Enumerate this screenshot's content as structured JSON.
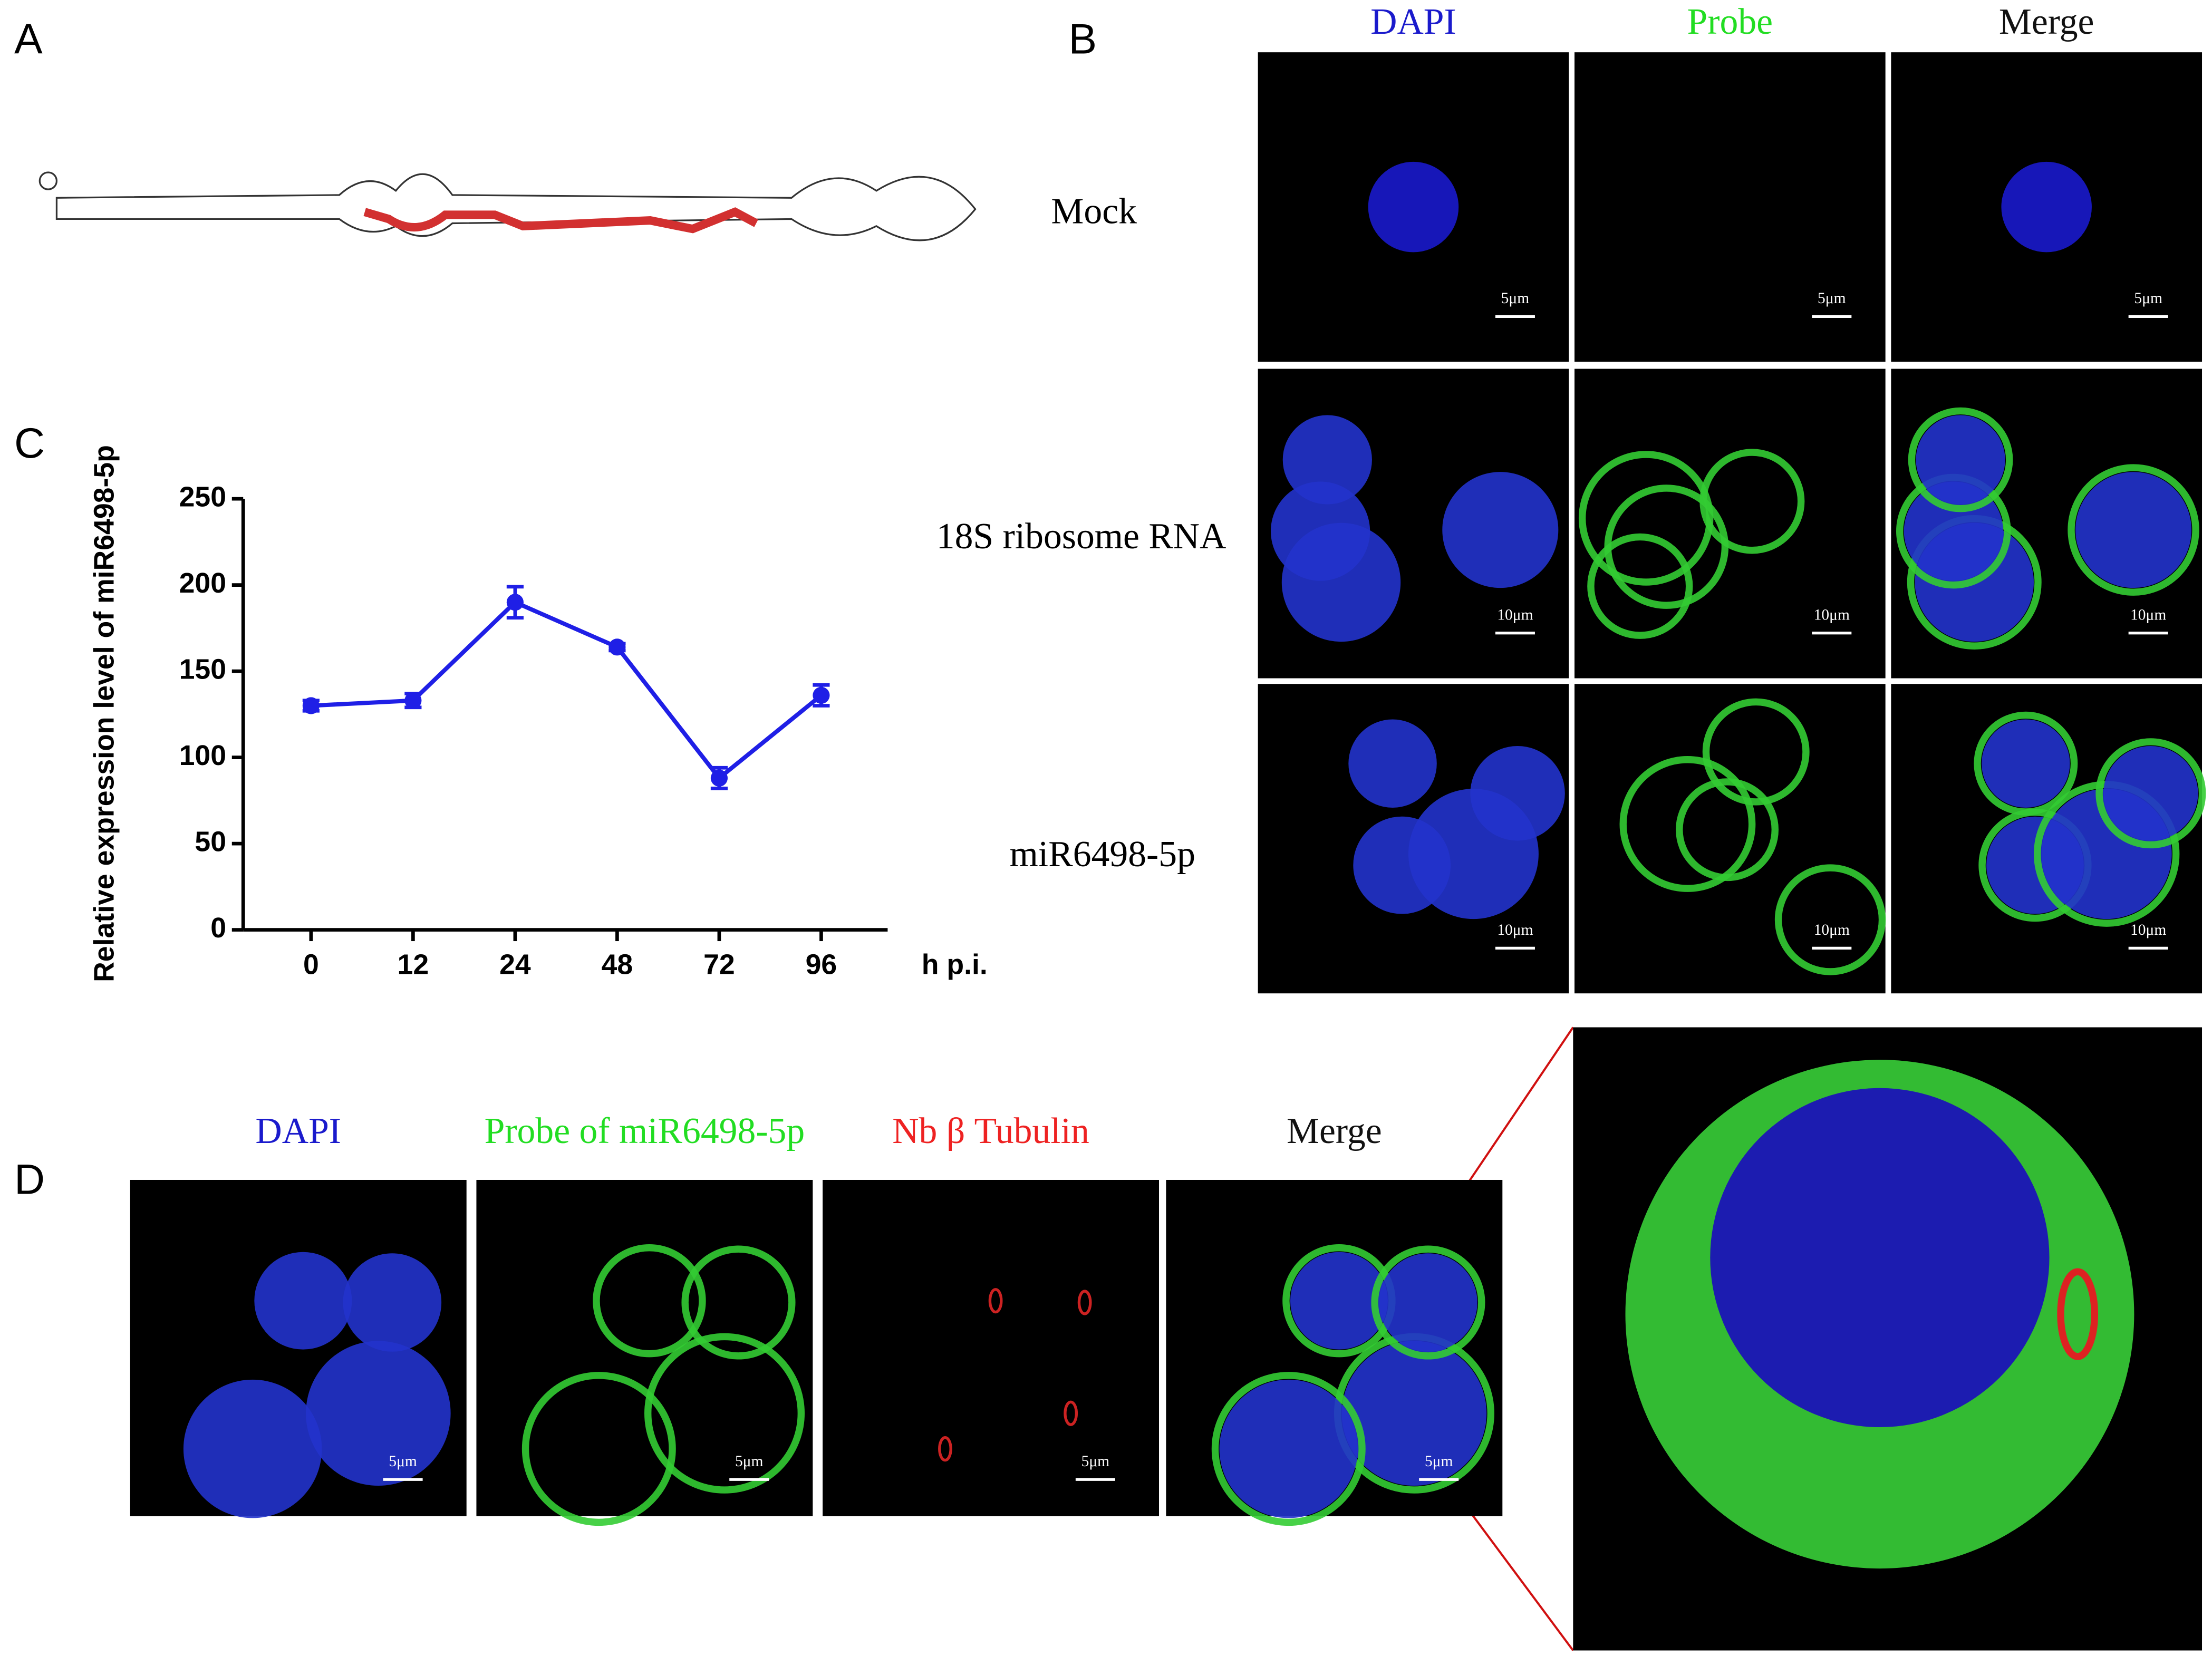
{
  "panel_labels": [
    "A",
    "B",
    "C",
    "D"
  ],
  "panel_b": {
    "columns": [
      "DAPI",
      "Probe",
      "Merge"
    ],
    "column_colors": [
      "#1a1acc",
      "#22dd22",
      "#111111"
    ],
    "rows": [
      "Mock",
      "18S ribosome RNA",
      "miR6498-5p"
    ],
    "scale_bars": [
      [
        "5μm",
        "5μm",
        "5μm"
      ],
      [
        "10μm",
        "10μm",
        "10μm"
      ],
      [
        "10μm",
        "10μm",
        "10μm"
      ]
    ]
  },
  "panel_d": {
    "columns": [
      "DAPI",
      "Probe of miR6498-5p",
      "Nb β Tubulin",
      "Merge"
    ],
    "column_colors": [
      "#1a1acc",
      "#22dd22",
      "#ee2222",
      "#111111"
    ],
    "scale_bars": [
      "5μm",
      "5μm",
      "5μm",
      "5μm"
    ]
  },
  "chart_data": {
    "type": "line",
    "ylabel": "Relative expression level of miR6498-5p",
    "xlabel": "h p.i.",
    "categories": [
      "0",
      "12",
      "24",
      "48",
      "72",
      "96"
    ],
    "series": [
      {
        "color": "#1f1fe6",
        "values": [
          130,
          133,
          190,
          164,
          88,
          136
        ],
        "errors": [
          3,
          4,
          9,
          2,
          6,
          6
        ]
      }
    ],
    "ylim": [
      0,
      250
    ],
    "yticks": [
      0,
      50,
      100,
      150,
      200,
      250
    ]
  }
}
